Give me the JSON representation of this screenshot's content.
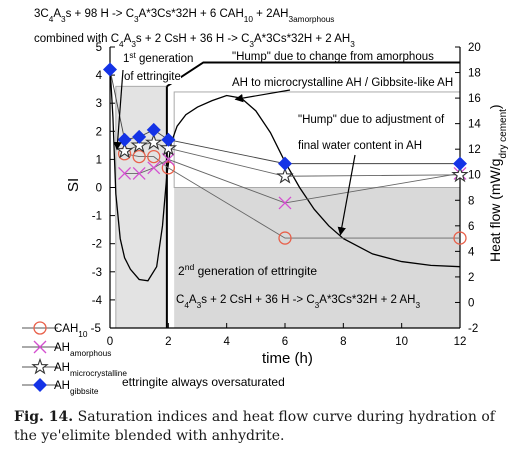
{
  "eq_top": "3C4A3s + 98 H -> C3A*3Cs*32H + 6 CAH10 + 2AH3amorphous",
  "eq_combined": "combined with  C4A3s + 2 CsH + 36 H -> C3A*3Cs*32H + 2 AH3",
  "caption": {
    "label": "Fig. 14.",
    "text": "Saturation indices and heat flow curve during hydration of the ye'elimite blended with anhydrite."
  },
  "chart_data": {
    "type": "line",
    "xlabel": "time (h)",
    "ylabel_left": "SI",
    "ylabel_right": "Heat flow (mW/g dry cement)",
    "xlim": [
      0,
      12
    ],
    "ylim_left": [
      -5,
      5
    ],
    "ylim_right": [
      -2,
      20
    ],
    "x_ticks": [
      "0",
      "2",
      "4",
      "6",
      "8",
      "10",
      "12"
    ],
    "y_ticks_left": [
      "-5",
      "-4",
      "-3",
      "-2",
      "-1",
      "0",
      "1",
      "2",
      "3",
      "4",
      "5"
    ],
    "y_ticks_right": [
      "-2",
      "0",
      "2",
      "4",
      "6",
      "8",
      "10",
      "12",
      "14",
      "16",
      "18",
      "20"
    ],
    "legend_position": "bottom-left",
    "colors": {
      "cah10": "#e8604a",
      "amorphous": "#d44fd0",
      "microcrystalline": "#333333",
      "gibbsite": "#1433e6",
      "heat": "#000000",
      "shade": "#d9d9d9"
    },
    "series": [
      {
        "name": "CAH10",
        "marker": "circle",
        "x": [
          0.5,
          1.0,
          1.5,
          2.0,
          6.0,
          12.0
        ],
        "y": [
          1.2,
          1.1,
          1.1,
          0.7,
          -1.8,
          -1.8
        ]
      },
      {
        "name": "AHamorphous",
        "marker": "x",
        "x": [
          0.5,
          1.0,
          1.5,
          2.0,
          6.0,
          12.0
        ],
        "y": [
          0.5,
          0.5,
          0.7,
          1.0,
          -0.55,
          0.5
        ]
      },
      {
        "name": "AHmicrocrystalline",
        "marker": "star",
        "x": [
          0.5,
          1.0,
          1.5,
          2.0,
          6.0,
          12.0
        ],
        "y": [
          1.3,
          1.5,
          1.6,
          1.4,
          0.4,
          0.45
        ]
      },
      {
        "name": "AHgibbsite",
        "marker": "diamond",
        "x": [
          0,
          0.5,
          1.0,
          1.5,
          2.0,
          6.0,
          12.0
        ],
        "y": [
          4.2,
          1.7,
          1.8,
          2.05,
          1.7,
          0.85,
          0.85
        ]
      }
    ],
    "heat_flow": {
      "name": "Heat flow",
      "x": [
        0,
        0.1,
        0.2,
        0.35,
        0.5,
        0.7,
        1.0,
        1.3,
        1.6,
        1.8,
        1.95,
        2.1,
        2.3,
        2.6,
        3.0,
        3.5,
        4.0,
        4.5,
        5.0,
        5.5,
        6.0,
        6.5,
        7.0,
        7.5,
        8.0,
        9.0,
        10.0,
        11.0,
        12.0
      ],
      "y": [
        18.5,
        14.5,
        8.5,
        5.0,
        3.5,
        2.6,
        1.8,
        1.7,
        2.8,
        6.0,
        10.0,
        12.5,
        13.8,
        14.7,
        15.3,
        15.8,
        16.2,
        16.0,
        15.0,
        13.3,
        11.0,
        9.0,
        7.3,
        6.0,
        5.0,
        3.8,
        3.2,
        2.9,
        2.8
      ]
    },
    "annotations": {
      "first_generation": [
        "1st generation",
        "of ettringite"
      ],
      "hump1": [
        "\"Hump\" due to change from amorphous",
        "AH to microcrystalline AH / Gibbsite-like AH"
      ],
      "hump2": [
        "\"Hump\" due to adjustment of",
        "final water content in AH"
      ],
      "second_generation": "2nd generation of ettringite",
      "second_eq": "C4A3s + 2 CsH + 36 H -> C3A*3Cs*32H + 2 AH3",
      "oversaturated": "ettringite always oversaturated"
    },
    "legend": [
      "CAH10 -5",
      "AHamorphous",
      "AHmicrocrystalline",
      "AHgibbsite"
    ]
  }
}
